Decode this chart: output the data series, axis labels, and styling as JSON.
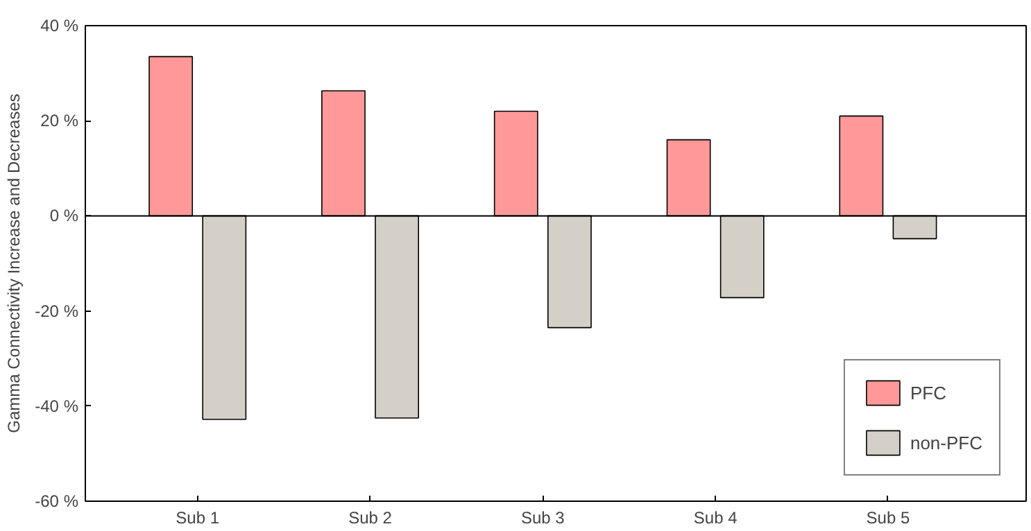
{
  "chart_data": {
    "type": "bar",
    "ylabel": "Gamma Connectivity Increase and Decreases",
    "categories": [
      "Sub 1",
      "Sub 2",
      "Sub 3",
      "Sub 4",
      "Sub 5"
    ],
    "series": [
      {
        "name": "PFC",
        "color": "#ff9999",
        "values": [
          33.5,
          26.3,
          22,
          16,
          21
        ]
      },
      {
        "name": "non-PFC",
        "color": "#d4d0c8",
        "values": [
          -42.8,
          -42.5,
          -23.5,
          -17.2,
          -4.8
        ]
      }
    ],
    "ylim": [
      -60,
      40
    ],
    "yticks": [
      {
        "value": -60,
        "label": "-60 %"
      },
      {
        "value": -40,
        "label": "-40 %"
      },
      {
        "value": -20,
        "label": "-20 %"
      },
      {
        "value": 0,
        "label": "0 %"
      },
      {
        "value": 20,
        "label": "20 %"
      },
      {
        "value": 40,
        "label": "40 %"
      }
    ],
    "grid": false,
    "ref_lines": [
      {
        "axis": "y",
        "value": 0,
        "color": "#000000",
        "line_style": "solid"
      }
    ],
    "legend": "bottom right"
  }
}
